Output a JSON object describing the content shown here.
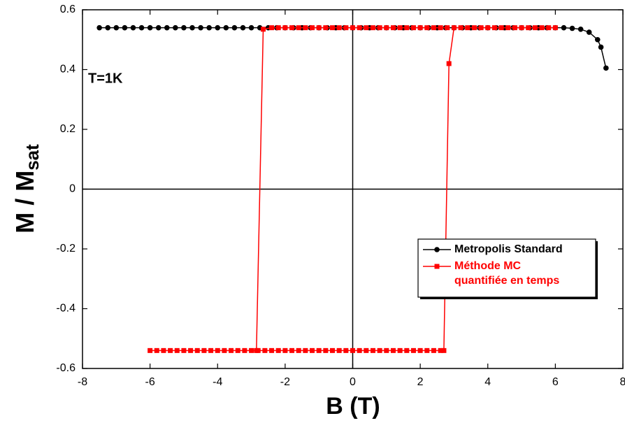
{
  "chart_data": {
    "type": "line",
    "xlabel": "B (T)",
    "ylabel": "M / M",
    "ylabel_subscript": "sat",
    "annotation": "T=1K",
    "xlim": [
      -8,
      8
    ],
    "xticks": [
      -8,
      -6,
      -4,
      -2,
      0,
      2,
      4,
      6,
      8
    ],
    "ylim": [
      -0.6,
      0.6
    ],
    "yticks": [
      -0.6,
      -0.4,
      -0.2,
      0,
      0.2,
      0.4,
      0.6
    ],
    "zero_lines": true,
    "legend": "lower right",
    "series": [
      {
        "name": "Metropolis Standard",
        "color": "#000000",
        "marker": "circle",
        "x": [
          -7.5,
          -7.25,
          -7,
          -6.75,
          -6.5,
          -6.25,
          -6,
          -5.75,
          -5.5,
          -5.25,
          -5,
          -4.75,
          -4.5,
          -4.25,
          -4,
          -3.75,
          -3.5,
          -3.25,
          -3,
          -2.75,
          -2.5,
          -2.25,
          -2,
          -1.75,
          -1.5,
          -1.25,
          -1,
          -0.75,
          -0.5,
          -0.25,
          0,
          0.25,
          0.5,
          0.75,
          1,
          1.25,
          1.5,
          1.75,
          2,
          2.25,
          2.5,
          2.75,
          3,
          3.25,
          3.5,
          3.75,
          4,
          4.25,
          4.5,
          4.75,
          5,
          5.25,
          5.5,
          5.75,
          6,
          6.25,
          6.5,
          6.75,
          7,
          7.25,
          7.35,
          7.5
        ],
        "values": [
          0.54,
          0.54,
          0.54,
          0.54,
          0.54,
          0.54,
          0.54,
          0.54,
          0.54,
          0.54,
          0.54,
          0.54,
          0.54,
          0.54,
          0.54,
          0.54,
          0.54,
          0.54,
          0.54,
          0.54,
          0.54,
          0.54,
          0.54,
          0.54,
          0.54,
          0.54,
          0.54,
          0.54,
          0.54,
          0.54,
          0.54,
          0.54,
          0.54,
          0.54,
          0.54,
          0.54,
          0.54,
          0.54,
          0.54,
          0.54,
          0.54,
          0.54,
          0.54,
          0.54,
          0.54,
          0.54,
          0.54,
          0.54,
          0.54,
          0.54,
          0.54,
          0.54,
          0.54,
          0.54,
          0.54,
          0.54,
          0.538,
          0.535,
          0.525,
          0.5,
          0.475,
          0.405
        ]
      },
      {
        "name": "Méthode MC quantifiée en temps",
        "color": "#ff0000",
        "marker": "square",
        "x": [
          -6,
          -5.8,
          -5.6,
          -5.4,
          -5.2,
          -5,
          -4.8,
          -4.6,
          -4.4,
          -4.2,
          -4,
          -3.8,
          -3.6,
          -3.4,
          -3.2,
          -3,
          -2.8,
          -2.6,
          -2.4,
          -2.2,
          -2,
          -1.8,
          -1.6,
          -1.4,
          -1.2,
          -1,
          -0.8,
          -0.6,
          -0.4,
          -0.2,
          0,
          0.2,
          0.4,
          0.6,
          0.8,
          1,
          1.2,
          1.4,
          1.6,
          1.8,
          2,
          2.2,
          2.4,
          2.6,
          2.7,
          2.85,
          3,
          3.2,
          3.4,
          3.6,
          3.8,
          4,
          4.2,
          4.4,
          4.6,
          4.8,
          5,
          5.2,
          5.4,
          5.6,
          5.8,
          6,
          null,
          -2.85,
          -2.65,
          -2.4,
          -2.2,
          -2,
          -1.8,
          -1.6,
          -1.4,
          -1.2,
          -1,
          -0.8,
          -0.6,
          -0.4,
          -0.2,
          0,
          0.2,
          0.4,
          0.6,
          0.8,
          1,
          1.2,
          1.4,
          1.6,
          1.8,
          2,
          2.2,
          2.4,
          2.6,
          2.8
        ],
        "values": [
          -0.54,
          -0.54,
          -0.54,
          -0.54,
          -0.54,
          -0.54,
          -0.54,
          -0.54,
          -0.54,
          -0.54,
          -0.54,
          -0.54,
          -0.54,
          -0.54,
          -0.54,
          -0.54,
          -0.54,
          -0.54,
          -0.54,
          -0.54,
          -0.54,
          -0.54,
          -0.54,
          -0.54,
          -0.54,
          -0.54,
          -0.54,
          -0.54,
          -0.54,
          -0.54,
          -0.54,
          -0.54,
          -0.54,
          -0.54,
          -0.54,
          -0.54,
          -0.54,
          -0.54,
          -0.54,
          -0.54,
          -0.54,
          -0.54,
          -0.54,
          -0.54,
          -0.54,
          0.42,
          0.54,
          0.54,
          0.54,
          0.54,
          0.54,
          0.54,
          0.54,
          0.54,
          0.54,
          0.54,
          0.54,
          0.54,
          0.54,
          0.54,
          0.54,
          0.54,
          null,
          -0.54,
          0.535,
          0.54,
          0.54,
          0.54,
          0.54,
          0.54,
          0.54,
          0.54,
          0.54,
          0.54,
          0.54,
          0.54,
          0.54,
          0.54,
          0.54,
          0.54,
          0.54,
          0.54,
          0.54,
          0.54,
          0.54,
          0.54,
          0.54,
          0.54,
          0.54,
          0.54,
          0.54,
          0.54
        ]
      }
    ]
  }
}
